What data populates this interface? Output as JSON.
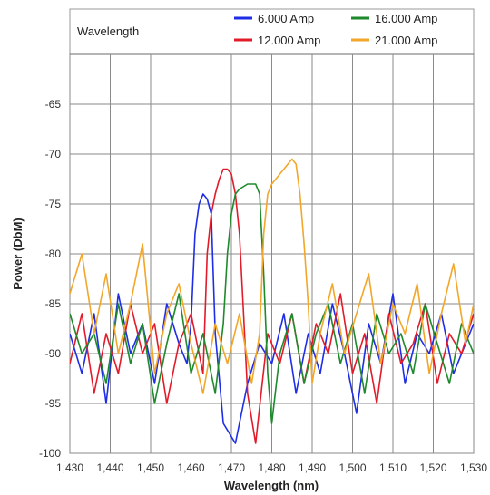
{
  "chart_data": {
    "type": "line",
    "title": "Wavelength",
    "xlabel": "Wavelength (nm)",
    "ylabel": "Power (DbM)",
    "xlim": [
      1430,
      1530
    ],
    "ylim": [
      -100,
      -60
    ],
    "x_ticks": [
      1430,
      1440,
      1450,
      1460,
      1470,
      1480,
      1490,
      1500,
      1510,
      1520,
      1530
    ],
    "x_tick_labels": [
      "1,430",
      "1,440",
      "1,450",
      "1,460",
      "1,470",
      "1,480",
      "1,490",
      "1,500",
      "1,510",
      "1,520",
      "1,530"
    ],
    "y_ticks": [
      -100,
      -95,
      -90,
      -85,
      -80,
      -75,
      -70,
      -65
    ],
    "y_tick_labels": [
      "-100",
      "-95",
      "-90",
      "-85",
      "-80",
      "-75",
      "-70",
      "-65"
    ],
    "grid": true,
    "legend_position": "top",
    "series": [
      {
        "name": "6.000 Amp",
        "color": "#1f2ee6",
        "x": [
          1430,
          1433,
          1436,
          1439,
          1442,
          1445,
          1448,
          1451,
          1454,
          1457,
          1459,
          1460,
          1461,
          1462,
          1463,
          1464,
          1465,
          1466,
          1468,
          1471,
          1474,
          1477,
          1480,
          1483,
          1486,
          1489,
          1492,
          1495,
          1498,
          1501,
          1504,
          1507,
          1510,
          1513,
          1516,
          1519,
          1522,
          1525,
          1528,
          1530
        ],
        "y": [
          -88,
          -92,
          -86,
          -95,
          -84,
          -90,
          -87,
          -93,
          -85,
          -89,
          -91,
          -87,
          -78,
          -75,
          -74,
          -74.5,
          -76,
          -88,
          -97,
          -99,
          -93,
          -89,
          -91,
          -86,
          -94,
          -88,
          -92,
          -85,
          -90,
          -96,
          -87,
          -91,
          -84,
          -93,
          -88,
          -90,
          -86,
          -92,
          -89,
          -87
        ]
      },
      {
        "name": "12.000 Amp",
        "color": "#e21b2b",
        "x": [
          1430,
          1433,
          1436,
          1439,
          1442,
          1445,
          1448,
          1451,
          1454,
          1457,
          1460,
          1463,
          1464,
          1465,
          1466,
          1467,
          1468,
          1469,
          1470,
          1471,
          1472,
          1473,
          1474,
          1476,
          1479,
          1482,
          1485,
          1488,
          1491,
          1494,
          1497,
          1500,
          1503,
          1506,
          1509,
          1512,
          1515,
          1518,
          1521,
          1524,
          1527,
          1530
        ],
        "y": [
          -91,
          -86,
          -94,
          -88,
          -92,
          -85,
          -90,
          -87,
          -95,
          -89,
          -86,
          -92,
          -80,
          -76,
          -74,
          -72.5,
          -71.5,
          -71.5,
          -72,
          -74,
          -78,
          -86,
          -94,
          -99,
          -88,
          -91,
          -86,
          -93,
          -87,
          -90,
          -84,
          -92,
          -88,
          -95,
          -86,
          -91,
          -89,
          -85,
          -93,
          -88,
          -90,
          -86
        ]
      },
      {
        "name": "16.000 Amp",
        "color": "#1e8a2b",
        "x": [
          1430,
          1433,
          1436,
          1439,
          1442,
          1445,
          1448,
          1451,
          1454,
          1457,
          1460,
          1463,
          1466,
          1468,
          1469,
          1470,
          1471,
          1472,
          1474,
          1476,
          1477,
          1478,
          1479,
          1480,
          1482,
          1485,
          1488,
          1491,
          1494,
          1497,
          1500,
          1503,
          1506,
          1509,
          1512,
          1515,
          1518,
          1521,
          1524,
          1527,
          1530
        ],
        "y": [
          -86,
          -90,
          -88,
          -93,
          -85,
          -91,
          -87,
          -95,
          -89,
          -84,
          -92,
          -88,
          -94,
          -87,
          -80,
          -76,
          -74,
          -73.5,
          -73,
          -73,
          -74,
          -82,
          -92,
          -97,
          -90,
          -86,
          -93,
          -88,
          -85,
          -91,
          -87,
          -94,
          -86,
          -90,
          -88,
          -92,
          -85,
          -89,
          -93,
          -87,
          -90
        ]
      },
      {
        "name": "21.000 Amp",
        "color": "#f2a72b",
        "x": [
          1430,
          1433,
          1436,
          1439,
          1442,
          1445,
          1448,
          1451,
          1454,
          1457,
          1460,
          1463,
          1466,
          1469,
          1472,
          1475,
          1477,
          1478,
          1479,
          1480,
          1482,
          1484,
          1485,
          1486,
          1487,
          1488,
          1489,
          1490,
          1492,
          1495,
          1498,
          1501,
          1504,
          1507,
          1510,
          1513,
          1516,
          1519,
          1522,
          1525,
          1528,
          1530
        ],
        "y": [
          -84,
          -80,
          -88,
          -82,
          -90,
          -85,
          -79,
          -92,
          -86,
          -83,
          -89,
          -94,
          -87,
          -91,
          -86,
          -93,
          -88,
          -78,
          -74,
          -73,
          -72,
          -71,
          -70.5,
          -71,
          -74,
          -79,
          -85,
          -93,
          -88,
          -83,
          -90,
          -86,
          -82,
          -91,
          -85,
          -88,
          -83,
          -92,
          -86,
          -81,
          -89,
          -85
        ]
      }
    ]
  }
}
